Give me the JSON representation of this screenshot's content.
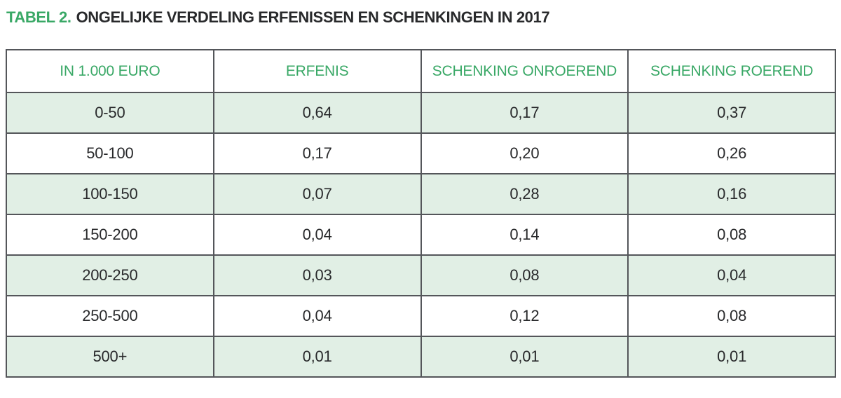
{
  "title": {
    "prefix": "TABEL 2.",
    "text": "ONGELIJKE VERDELING ERFENISSEN EN SCHENKINGEN IN 2017"
  },
  "colors": {
    "accent_green": "#39a866",
    "row_green_bg": "#e1efe5",
    "border_gray": "#54565a",
    "text_dark": "#28292b",
    "page_bg": "#ffffff"
  },
  "table": {
    "headers": [
      "IN 1.000 EURO",
      "ERFENIS",
      "SCHENKING ONROEREND",
      "SCHENKING ROEREND"
    ],
    "rows": [
      {
        "range": "0-50",
        "values": [
          "0,64",
          "0,17",
          "0,37"
        ],
        "shaded": true
      },
      {
        "range": "50-100",
        "values": [
          "0,17",
          "0,20",
          "0,26"
        ],
        "shaded": false
      },
      {
        "range": "100-150",
        "values": [
          "0,07",
          "0,28",
          "0,16"
        ],
        "shaded": true
      },
      {
        "range": "150-200",
        "values": [
          "0,04",
          "0,14",
          "0,08"
        ],
        "shaded": false
      },
      {
        "range": "200-250",
        "values": [
          "0,03",
          "0,08",
          "0,04"
        ],
        "shaded": true
      },
      {
        "range": "250-500",
        "values": [
          "0,04",
          "0,12",
          "0,08"
        ],
        "shaded": false
      },
      {
        "range": "500+",
        "values": [
          "0,01",
          "0,01",
          "0,01"
        ],
        "shaded": true
      }
    ]
  },
  "chart_data": {
    "type": "table",
    "title": "TABEL 2. ONGELIJKE VERDELING ERFENISSEN EN SCHENKINGEN IN 2017",
    "columns": [
      "IN 1.000 EURO",
      "ERFENIS",
      "SCHENKING ONROEREND",
      "SCHENKING ROEREND"
    ],
    "rows": [
      [
        "0-50",
        0.64,
        0.17,
        0.37
      ],
      [
        "50-100",
        0.17,
        0.2,
        0.26
      ],
      [
        "100-150",
        0.07,
        0.28,
        0.16
      ],
      [
        "150-200",
        0.04,
        0.14,
        0.08
      ],
      [
        "200-250",
        0.03,
        0.08,
        0.04
      ],
      [
        "250-500",
        0.04,
        0.12,
        0.08
      ],
      [
        "500+",
        0.01,
        0.01,
        0.01
      ]
    ],
    "notes": "Values are shares (decimal comma notation); striped rows use light green background"
  }
}
